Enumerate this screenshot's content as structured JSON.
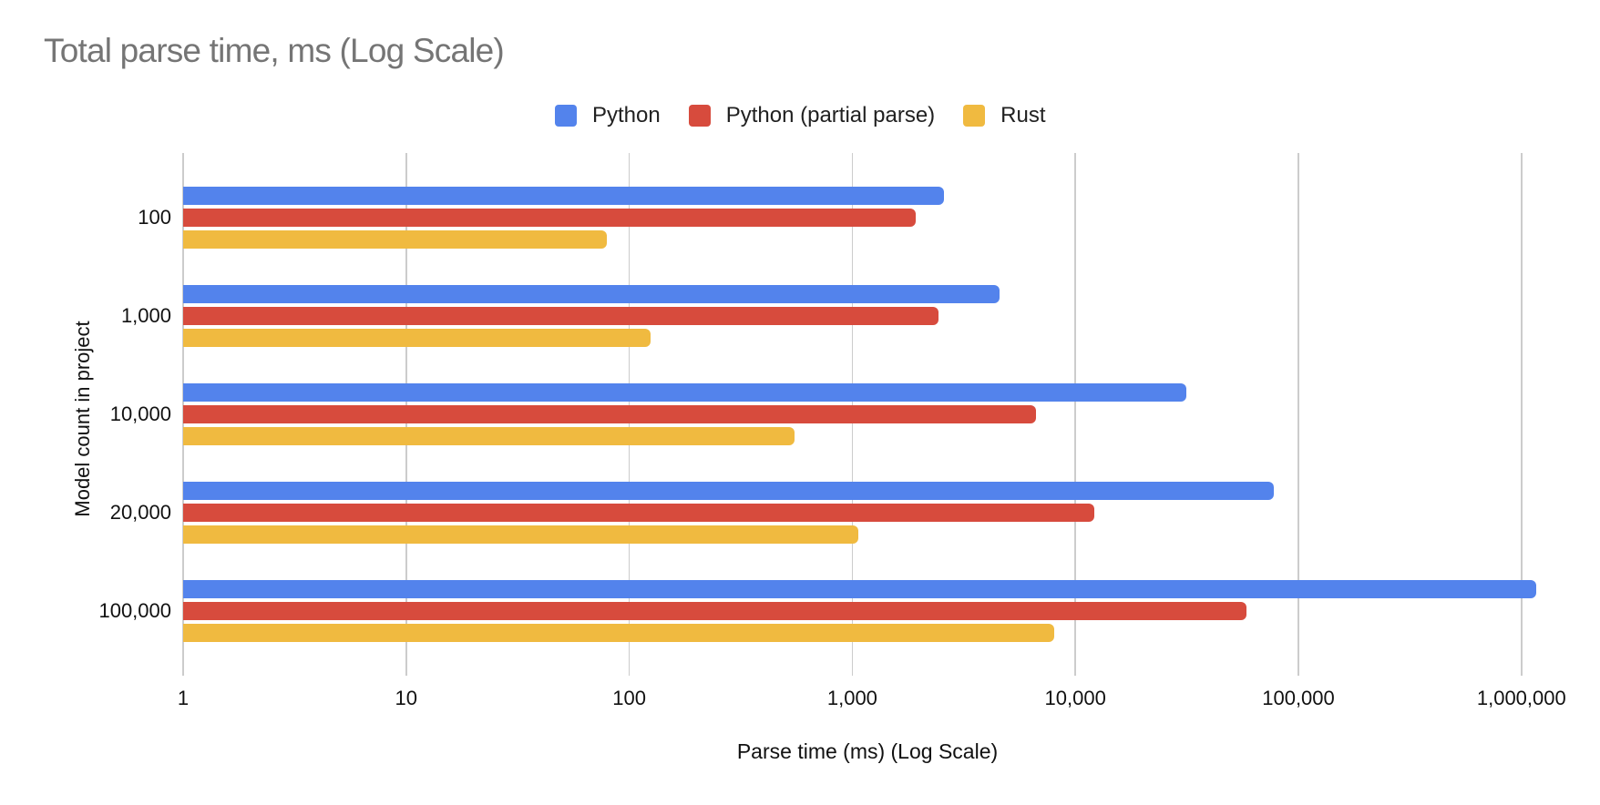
{
  "chart_data": {
    "type": "bar",
    "orientation": "horizontal",
    "title": "Total parse time, ms (Log Scale)",
    "xlabel": "Parse time (ms) (Log Scale)",
    "ylabel": "Model count in project",
    "categories": [
      "100",
      "1,000",
      "10,000",
      "20,000",
      "100,000"
    ],
    "series": [
      {
        "name": "Python",
        "color": "#5383ec",
        "values": [
          2580,
          4560,
          31400,
          77300,
          1170000
        ]
      },
      {
        "name": "Python (partial parse)",
        "color": "#d74b3d",
        "values": [
          1930,
          2440,
          6640,
          12200,
          58600
        ]
      },
      {
        "name": "Rust",
        "color": "#f0ba40",
        "values": [
          79,
          125,
          550,
          1060,
          8020
        ]
      }
    ],
    "x_scale": "log",
    "xlim": [
      1,
      1000000
    ],
    "x_ticks": [
      "1",
      "10",
      "100",
      "1,000",
      "10,000",
      "100,000",
      "1,000,000"
    ],
    "grid": true,
    "legend_position": "top"
  }
}
